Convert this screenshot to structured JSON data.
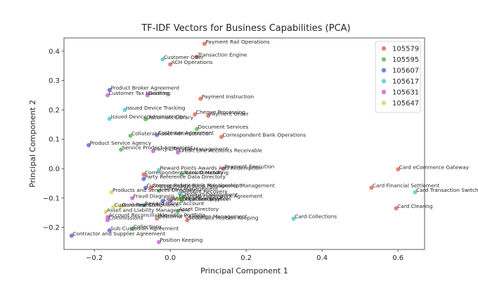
{
  "chart_data": {
    "type": "scatter",
    "title": "TF-IDF Vectors for Business Capabilities (PCA)",
    "xlabel": "Principal Component 1",
    "ylabel": "Principal Component 2",
    "xlim": [
      -0.28,
      0.67
    ],
    "ylim": [
      -0.275,
      0.445
    ],
    "xticks": [
      "−0.2",
      "0.0",
      "0.2",
      "0.4",
      "0.6"
    ],
    "yticks": [
      "−0.2",
      "−0.1",
      "0.0",
      "0.1",
      "0.2",
      "0.3",
      "0.4"
    ],
    "xtick_values": [
      -0.2,
      0.0,
      0.2,
      0.4,
      0.6
    ],
    "ytick_values": [
      -0.2,
      -0.1,
      0.0,
      0.1,
      0.2,
      0.3,
      0.4
    ],
    "grid": false,
    "legend_position": "top-right",
    "series": [
      {
        "name": "105579",
        "color": "#e8514a",
        "points": [
          {
            "label": "Payment Rail Operations",
            "x": 0.09,
            "y": 0.425
          },
          {
            "label": "Transaction Engine",
            "x": 0.07,
            "y": 0.38
          },
          {
            "label": "ACH Operations",
            "x": 0.0,
            "y": 0.355
          },
          {
            "label": "Payment Instruction",
            "x": 0.08,
            "y": 0.238
          },
          {
            "label": "Cheque Processing",
            "x": 0.065,
            "y": 0.185
          },
          {
            "label": "Payment Order",
            "x": 0.1,
            "y": 0.18
          },
          {
            "label": "Correspondent Bank Operations",
            "x": 0.135,
            "y": 0.108
          },
          {
            "label": "Payment Execution",
            "x": 0.14,
            "y": 0.0
          },
          {
            "label": "Card eCommerce Gateway",
            "x": 0.6,
            "y": -0.002
          },
          {
            "label": "Card Financial Settlement",
            "x": 0.53,
            "y": -0.065
          },
          {
            "label": "Card Clearing",
            "x": 0.595,
            "y": -0.135
          },
          {
            "label": "Correspondent Bank Directory",
            "x": -0.07,
            "y": -0.02
          },
          {
            "label": "Correspondent Bank Relationship Management",
            "x": -0.05,
            "y": -0.065
          },
          {
            "label": "Securities Position Keeping",
            "x": 0.045,
            "y": -0.175
          }
        ]
      },
      {
        "name": "105595",
        "color": "#4bb34b",
        "points": [
          {
            "label": "Document Services",
            "x": 0.07,
            "y": 0.135
          },
          {
            "label": "Document Library",
            "x": -0.065,
            "y": 0.168
          },
          {
            "label": "Collateral Asset Administration",
            "x": -0.105,
            "y": 0.112
          },
          {
            "label": "Service Product Agreement",
            "x": -0.13,
            "y": 0.065
          },
          {
            "label": "Account Handling",
            "x": 0.03,
            "y": -0.02
          },
          {
            "label": "Contract Management",
            "x": -0.03,
            "y": -0.075
          },
          {
            "label": "Product Deployment",
            "x": 0.035,
            "y": -0.095
          },
          {
            "label": "Legal Compliance",
            "x": 0.03,
            "y": -0.11
          },
          {
            "label": "Collections",
            "x": -0.1,
            "y": -0.205
          },
          {
            "label": "Asset Directory",
            "x": 0.02,
            "y": -0.145
          }
        ]
      },
      {
        "name": "105607",
        "color": "#4a58d8",
        "points": [
          {
            "label": "Product Broker Agreement",
            "x": -0.16,
            "y": 0.268
          },
          {
            "label": "Customer Agreement",
            "x": -0.035,
            "y": 0.115
          },
          {
            "label": "Product Service Agency",
            "x": -0.215,
            "y": 0.08
          },
          {
            "label": "Party Reference Data Directory",
            "x": -0.07,
            "y": -0.035
          },
          {
            "label": "Customer Relationship Management",
            "x": -0.065,
            "y": -0.065
          },
          {
            "label": "Sub Custodian Agreement",
            "x": -0.16,
            "y": -0.21
          },
          {
            "label": "Contractor and Supplier Agreement",
            "x": -0.26,
            "y": -0.228
          },
          {
            "label": "Legal Entity Directory",
            "x": -0.02,
            "y": -0.11
          }
        ]
      },
      {
        "name": "105617",
        "color": "#3ec6c6",
        "points": [
          {
            "label": "Customer Offer",
            "x": -0.02,
            "y": 0.372
          },
          {
            "label": "Issued Device Tracking",
            "x": -0.12,
            "y": 0.2
          },
          {
            "label": "Issued Device Administration",
            "x": -0.16,
            "y": 0.17
          },
          {
            "label": "Reward Points Awards And Redemption",
            "x": -0.03,
            "y": -0.005
          },
          {
            "label": "Card Transaction Switch",
            "x": 0.645,
            "y": -0.08
          },
          {
            "label": "Card Collections",
            "x": 0.325,
            "y": -0.17
          },
          {
            "label": "Account Recovery",
            "x": 0.025,
            "y": -0.085
          },
          {
            "label": "Reward Points Account",
            "x": -0.07,
            "y": -0.125
          }
        ]
      },
      {
        "name": "105631",
        "color": "#c94fd3",
        "points": [
          {
            "label": "Customer Tax Handling",
            "x": -0.165,
            "y": 0.25
          },
          {
            "label": "Dunning",
            "x": -0.06,
            "y": 0.25
          },
          {
            "label": "Party Lifecycle Management",
            "x": -0.045,
            "y": 0.06
          },
          {
            "label": "Credit Line Accounts Receivable",
            "x": 0.02,
            "y": 0.055
          },
          {
            "label": "Fraud Diagnosis",
            "x": -0.1,
            "y": -0.1
          },
          {
            "label": "Product Inventory Item",
            "x": 0.0,
            "y": -0.11
          },
          {
            "label": "Commissions",
            "x": -0.165,
            "y": -0.175
          },
          {
            "label": "Account Reconciliation",
            "x": -0.165,
            "y": -0.165
          },
          {
            "label": "Position Keeping",
            "x": -0.03,
            "y": -0.25
          },
          {
            "label": "Customer Campaign Management",
            "x": -0.035,
            "y": -0.17
          }
        ]
      },
      {
        "name": "105647",
        "color": "#d6d23e",
        "points": [
          {
            "label": "Products and Services Directory",
            "x": -0.155,
            "y": -0.08
          },
          {
            "label": "Asset and Liability Management",
            "x": -0.17,
            "y": -0.148
          },
          {
            "label": "Custom Research",
            "x": -0.15,
            "y": -0.13
          },
          {
            "label": "Guideline Compliance",
            "x": -0.13,
            "y": -0.13
          },
          {
            "label": "Liquidity Portfolio",
            "x": -0.03,
            "y": -0.165
          },
          {
            "label": "Financial Framework Agreement",
            "x": 0.02,
            "y": -0.1
          }
        ]
      }
    ]
  }
}
